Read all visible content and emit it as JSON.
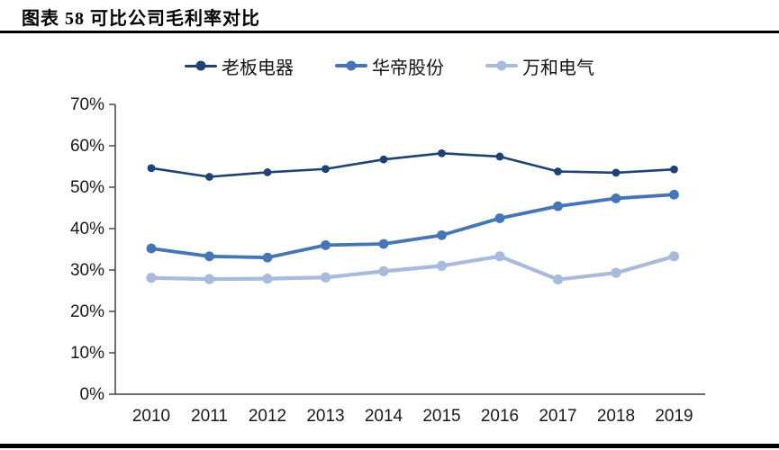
{
  "page": {
    "title": "图表 58 可比公司毛利率对比"
  },
  "chart_data": {
    "type": "line",
    "title": "可比公司毛利率对比",
    "categories": [
      "2010",
      "2011",
      "2012",
      "2013",
      "2014",
      "2015",
      "2016",
      "2017",
      "2018",
      "2019"
    ],
    "series": [
      {
        "name": "老板电器",
        "color": "#1F4273",
        "line_width": 2.6,
        "marker_radius": 4.4,
        "values": [
          54.6,
          52.5,
          53.6,
          54.4,
          56.7,
          58.2,
          57.4,
          53.8,
          53.5,
          54.3
        ]
      },
      {
        "name": "华帝股份",
        "color": "#4375B7",
        "line_width": 3.8,
        "marker_radius": 5.4,
        "values": [
          35.2,
          33.3,
          33.0,
          36.0,
          36.3,
          38.4,
          42.5,
          45.4,
          47.3,
          48.2
        ]
      },
      {
        "name": "万和电气",
        "color": "#A8BBDC",
        "line_width": 4.2,
        "marker_radius": 5.6,
        "values": [
          28.1,
          27.8,
          27.9,
          28.2,
          29.7,
          31.0,
          33.3,
          27.7,
          29.3,
          33.3
        ]
      }
    ],
    "xlabel": "",
    "ylabel": "",
    "ylim": [
      0,
      70
    ],
    "ytick_step": 10,
    "ytick_labels": [
      "0%",
      "10%",
      "20%",
      "30%",
      "40%",
      "50%",
      "60%",
      "70%"
    ],
    "grid": false,
    "legend_position": "top",
    "axis_color": "#3F3F3F",
    "tick_label_color": "#1A1A1A"
  }
}
